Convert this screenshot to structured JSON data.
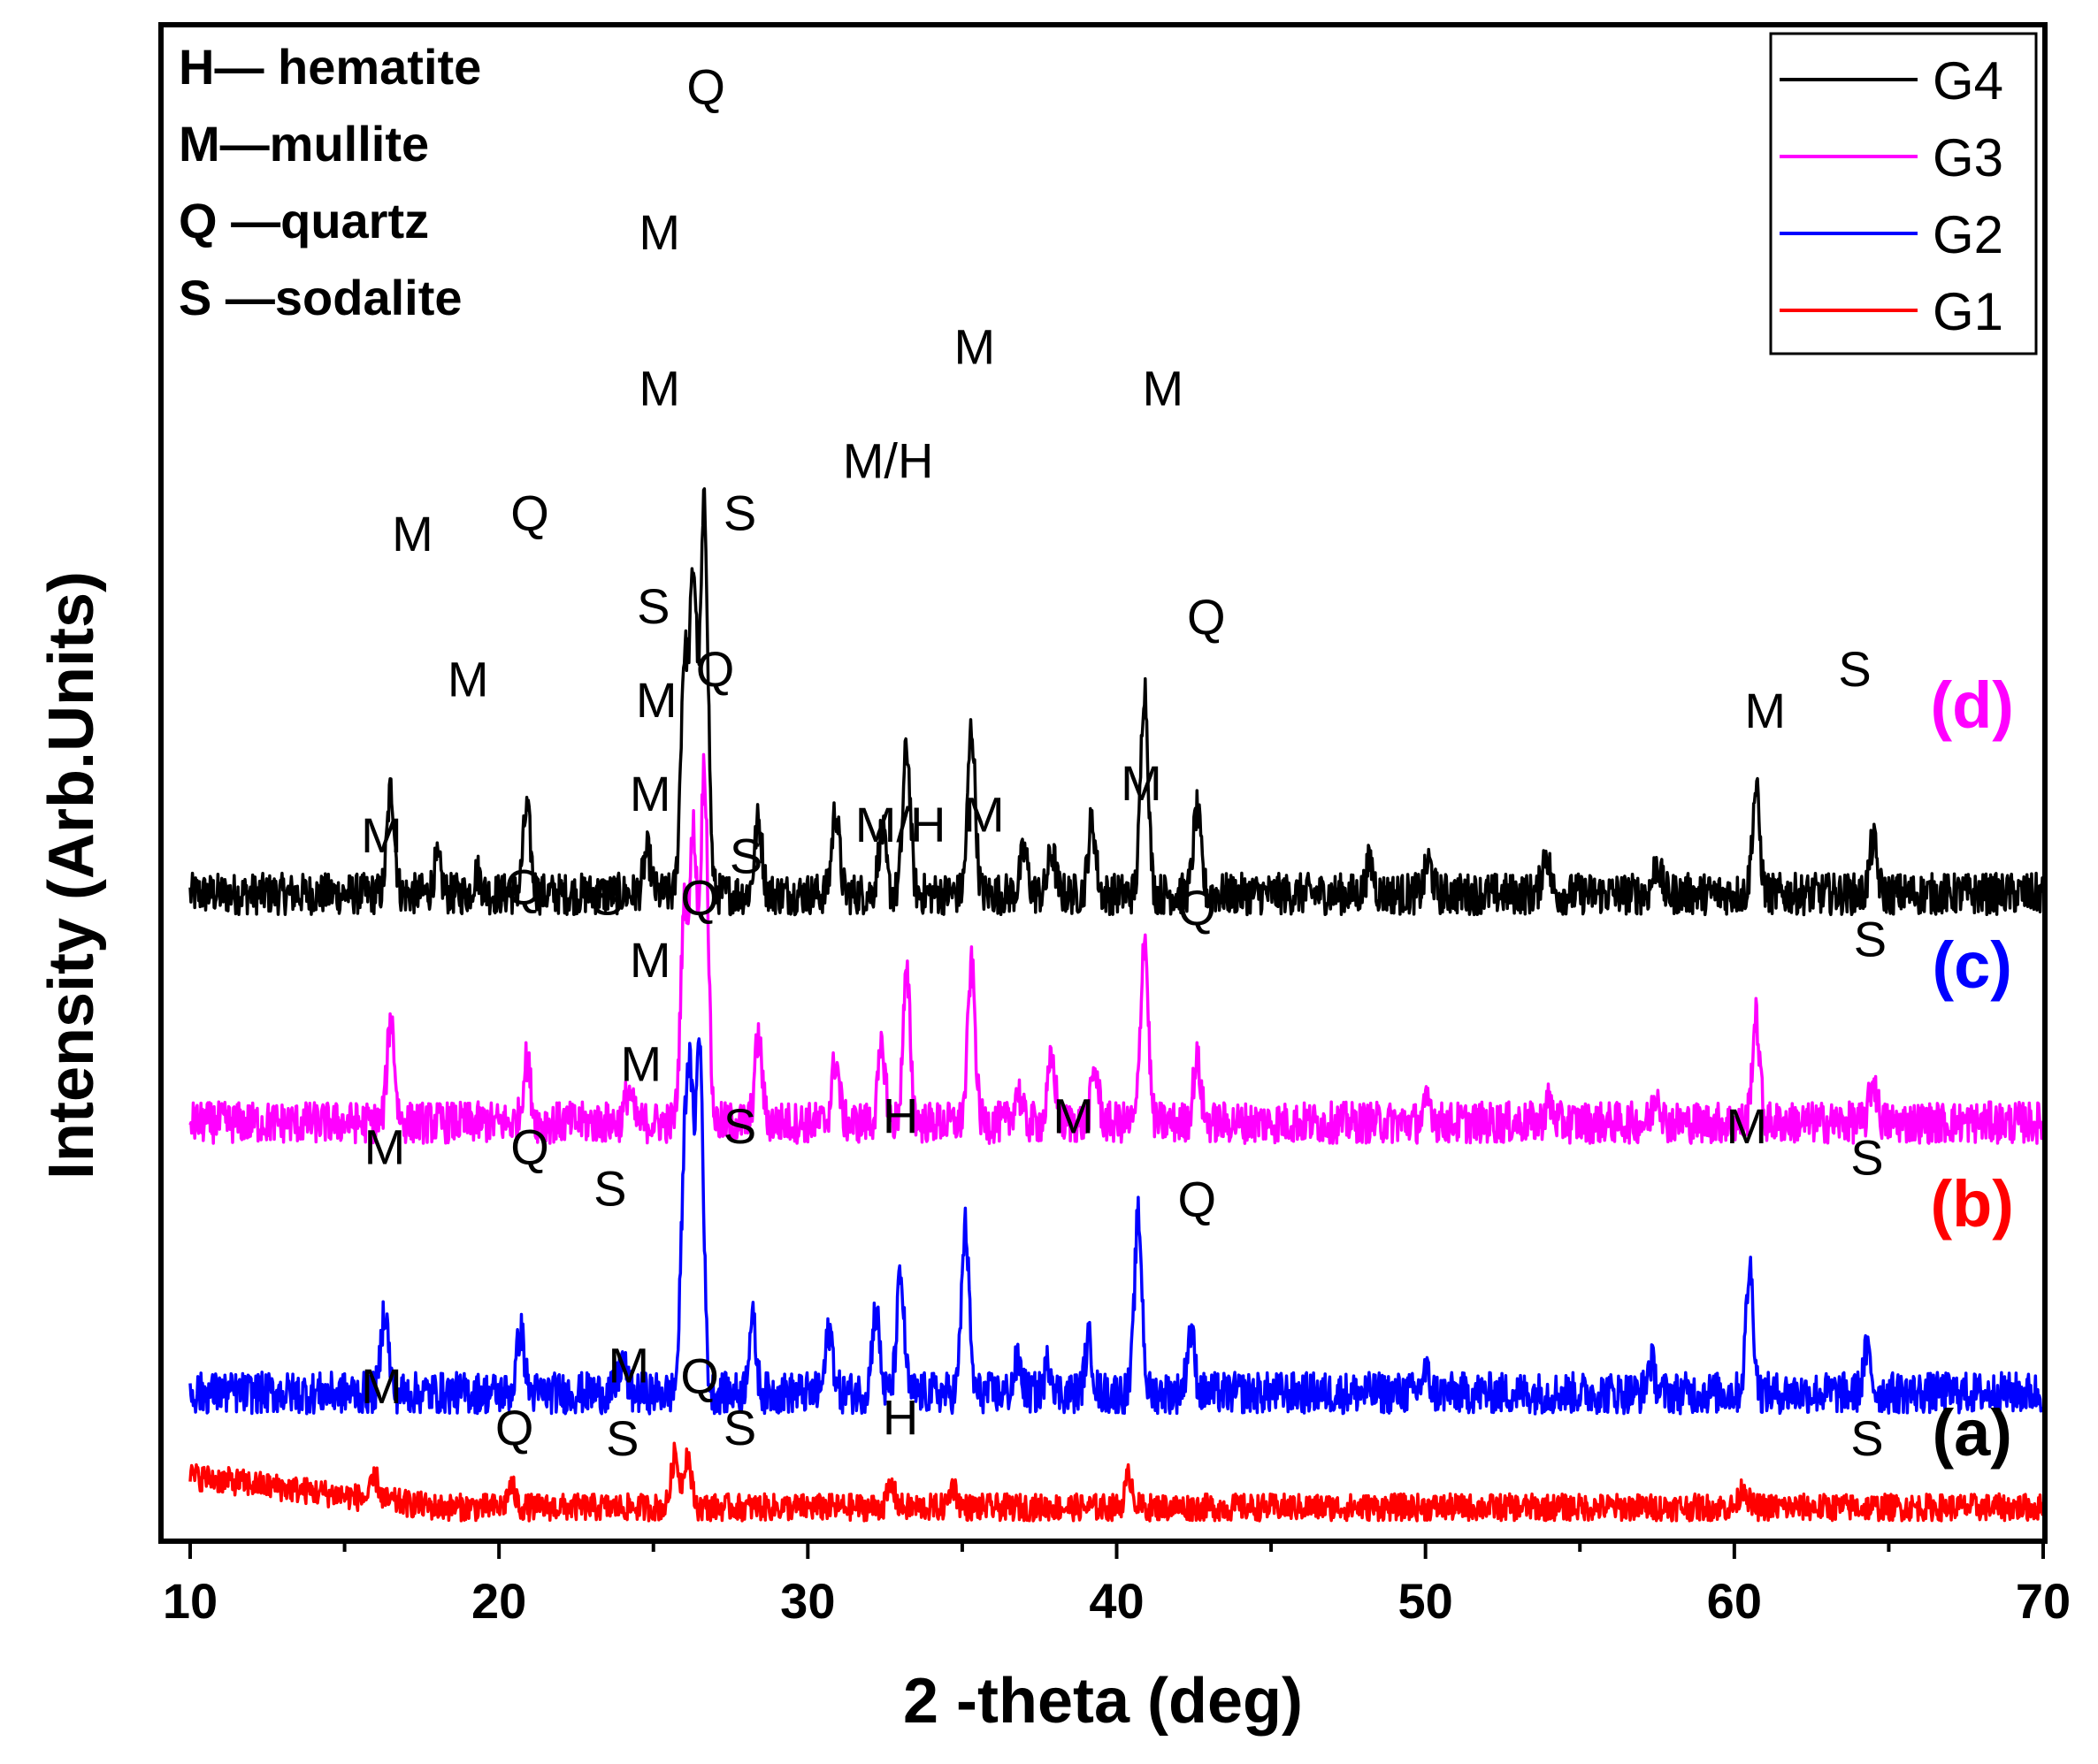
{
  "chart_data": {
    "type": "line",
    "title": "",
    "xlabel": "2 -theta (deg)",
    "ylabel": "Intensity (Arb.Units)",
    "xlim": [
      10,
      70
    ],
    "xticks": [
      10,
      20,
      30,
      40,
      50,
      60,
      70
    ],
    "xtick_labels": [
      "10",
      "20",
      "30",
      "40",
      "50",
      "60",
      "70"
    ],
    "yticks_visible": false,
    "legend_position": "top-right",
    "phase_key": [
      "H— hematite",
      "M—mullite",
      "Q —quartz",
      "S —sodalite"
    ],
    "series": [
      {
        "name": "G4",
        "curve_label": "(d)",
        "color": "#000000",
        "label_color": "#ff00ff",
        "baseline": 62,
        "noise": 2.0,
        "peaks": [
          {
            "x": 16.5,
            "h": 10
          },
          {
            "x": 18.0,
            "h": 3
          },
          {
            "x": 19.3,
            "h": 2
          },
          {
            "x": 20.9,
            "h": 8
          },
          {
            "x": 24.8,
            "h": 4
          },
          {
            "x": 26.0,
            "h": 22
          },
          {
            "x": 26.3,
            "h": 30
          },
          {
            "x": 26.65,
            "h": 37
          },
          {
            "x": 28.4,
            "h": 7
          },
          {
            "x": 30.9,
            "h": 8
          },
          {
            "x": 32.4,
            "h": 6
          },
          {
            "x": 33.2,
            "h": 14
          },
          {
            "x": 35.3,
            "h": 16
          },
          {
            "x": 37.0,
            "h": 4
          },
          {
            "x": 37.9,
            "h": 4
          },
          {
            "x": 39.2,
            "h": 7
          },
          {
            "x": 40.9,
            "h": 20
          },
          {
            "x": 42.6,
            "h": 8
          },
          {
            "x": 48.2,
            "h": 3
          },
          {
            "x": 50.1,
            "h": 3
          },
          {
            "x": 53.9,
            "h": 4
          },
          {
            "x": 57.5,
            "h": 3
          },
          {
            "x": 60.7,
            "h": 10
          },
          {
            "x": 64.5,
            "h": 5
          }
        ],
        "peak_labels": [
          {
            "x": 17.2,
            "y": 95,
            "text": "M"
          },
          {
            "x": 19.0,
            "y": 81,
            "text": "M"
          },
          {
            "x": 21.0,
            "y": 97,
            "text": "Q"
          },
          {
            "x": 25.0,
            "y": 88,
            "text": "S"
          },
          {
            "x": 25.2,
            "y": 124,
            "text": "M"
          },
          {
            "x": 25.2,
            "y": 109,
            "text": "M"
          },
          {
            "x": 26.7,
            "y": 138,
            "text": "Q"
          },
          {
            "x": 27.8,
            "y": 97,
            "text": "S"
          },
          {
            "x": 32.6,
            "y": 102,
            "text": "M/H"
          },
          {
            "x": 35.4,
            "y": 113,
            "text": "M"
          },
          {
            "x": 41.5,
            "y": 109,
            "text": "M"
          },
          {
            "x": 42.9,
            "y": 87,
            "text": "Q"
          },
          {
            "x": 61.0,
            "y": 78,
            "text": "M"
          },
          {
            "x": 63.9,
            "y": 82,
            "text": "S"
          }
        ],
        "curve_label_pos": {
          "x": 67.7,
          "y": 78
        }
      },
      {
        "name": "G3",
        "curve_label": "(c)",
        "color": "#ff00ff",
        "label_color": "#0000ff",
        "baseline": 40,
        "noise": 2.0,
        "peaks": [
          {
            "x": 16.5,
            "h": 10
          },
          {
            "x": 20.9,
            "h": 6
          },
          {
            "x": 24.2,
            "h": 3
          },
          {
            "x": 26.0,
            "h": 20
          },
          {
            "x": 26.3,
            "h": 27
          },
          {
            "x": 26.65,
            "h": 34
          },
          {
            "x": 28.4,
            "h": 8
          },
          {
            "x": 30.9,
            "h": 6
          },
          {
            "x": 32.4,
            "h": 7
          },
          {
            "x": 33.2,
            "h": 14
          },
          {
            "x": 35.3,
            "h": 15
          },
          {
            "x": 36.8,
            "h": 3
          },
          {
            "x": 37.9,
            "h": 6
          },
          {
            "x": 39.3,
            "h": 5
          },
          {
            "x": 40.9,
            "h": 18
          },
          {
            "x": 42.6,
            "h": 6
          },
          {
            "x": 50.1,
            "h": 2
          },
          {
            "x": 54.0,
            "h": 2
          },
          {
            "x": 57.5,
            "h": 3
          },
          {
            "x": 60.7,
            "h": 10
          },
          {
            "x": 64.5,
            "h": 4
          }
        ],
        "peak_labels": [
          {
            "x": 16.2,
            "y": 66,
            "text": "M"
          },
          {
            "x": 20.8,
            "y": 61,
            "text": "Q"
          },
          {
            "x": 23.5,
            "y": 60,
            "text": "S"
          },
          {
            "x": 25.1,
            "y": 79,
            "text": "M"
          },
          {
            "x": 24.9,
            "y": 70,
            "text": "M"
          },
          {
            "x": 27.0,
            "y": 82,
            "text": "Q"
          },
          {
            "x": 28.0,
            "y": 64,
            "text": "S"
          },
          {
            "x": 33.0,
            "y": 67,
            "text": "M/H"
          },
          {
            "x": 35.7,
            "y": 68,
            "text": "M"
          },
          {
            "x": 40.8,
            "y": 71,
            "text": "M"
          },
          {
            "x": 38.6,
            "y": 39,
            "text": "M"
          },
          {
            "x": 42.6,
            "y": 59,
            "text": "Q"
          },
          {
            "x": 64.4,
            "y": 56,
            "text": "S"
          }
        ],
        "curve_label_pos": {
          "x": 67.7,
          "y": 53
        }
      },
      {
        "name": "G2",
        "curve_label": "(b)",
        "color": "#0000ff",
        "label_color": "#ff0000",
        "baseline": 14,
        "noise": 2.0,
        "peaks": [
          {
            "x": 16.3,
            "h": 8
          },
          {
            "x": 20.7,
            "h": 6
          },
          {
            "x": 24.0,
            "h": 3
          },
          {
            "x": 26.0,
            "h": 19
          },
          {
            "x": 26.2,
            "h": 25
          },
          {
            "x": 26.5,
            "h": 33
          },
          {
            "x": 28.2,
            "h": 7
          },
          {
            "x": 30.7,
            "h": 6
          },
          {
            "x": 32.2,
            "h": 8
          },
          {
            "x": 33.0,
            "h": 11
          },
          {
            "x": 35.1,
            "h": 16
          },
          {
            "x": 36.8,
            "h": 3
          },
          {
            "x": 37.8,
            "h": 3
          },
          {
            "x": 39.1,
            "h": 5
          },
          {
            "x": 40.7,
            "h": 17
          },
          {
            "x": 42.4,
            "h": 6
          },
          {
            "x": 50.0,
            "h": 2
          },
          {
            "x": 57.3,
            "h": 3
          },
          {
            "x": 60.5,
            "h": 12
          },
          {
            "x": 64.3,
            "h": 4
          }
        ],
        "peak_labels": [
          {
            "x": 16.3,
            "y": 36,
            "text": "M"
          },
          {
            "x": 21.0,
            "y": 36,
            "text": "Q"
          },
          {
            "x": 23.6,
            "y": 32,
            "text": "S"
          },
          {
            "x": 24.9,
            "y": 54,
            "text": "M"
          },
          {
            "x": 24.6,
            "y": 44,
            "text": "M"
          },
          {
            "x": 26.5,
            "y": 60,
            "text": "Q"
          },
          {
            "x": 27.8,
            "y": 38,
            "text": "S"
          },
          {
            "x": 33.0,
            "y": 39,
            "text": "H"
          },
          {
            "x": 42.6,
            "y": 31,
            "text": "Q"
          },
          {
            "x": 60.4,
            "y": 38,
            "text": "M"
          },
          {
            "x": 64.3,
            "y": 35,
            "text": "S"
          }
        ],
        "curve_label_pos": {
          "x": 67.7,
          "y": 30
        }
      },
      {
        "name": "G1",
        "curve_label": "(a)",
        "color": "#ff0000",
        "label_color": "#000000",
        "baseline": 3,
        "noise": 1.3,
        "slope_start": 3,
        "peaks": [
          {
            "x": 16.0,
            "h": 2
          },
          {
            "x": 20.4,
            "h": 2
          },
          {
            "x": 25.7,
            "h": 5
          },
          {
            "x": 26.1,
            "h": 5
          },
          {
            "x": 32.7,
            "h": 2
          },
          {
            "x": 34.7,
            "h": 2
          },
          {
            "x": 40.4,
            "h": 3
          },
          {
            "x": 60.3,
            "h": 2
          }
        ],
        "peak_labels": [
          {
            "x": 16.2,
            "y": 13,
            "text": "M"
          },
          {
            "x": 20.5,
            "y": 9,
            "text": "Q"
          },
          {
            "x": 24.2,
            "y": 15,
            "text": "M"
          },
          {
            "x": 24.0,
            "y": 8,
            "text": "S"
          },
          {
            "x": 26.5,
            "y": 14,
            "text": "Q"
          },
          {
            "x": 27.8,
            "y": 9,
            "text": "S"
          },
          {
            "x": 33.0,
            "y": 10,
            "text": "H"
          },
          {
            "x": 64.3,
            "y": 8,
            "text": "S"
          }
        ],
        "curve_label_pos": {
          "x": 67.7,
          "y": 8
        }
      }
    ]
  }
}
